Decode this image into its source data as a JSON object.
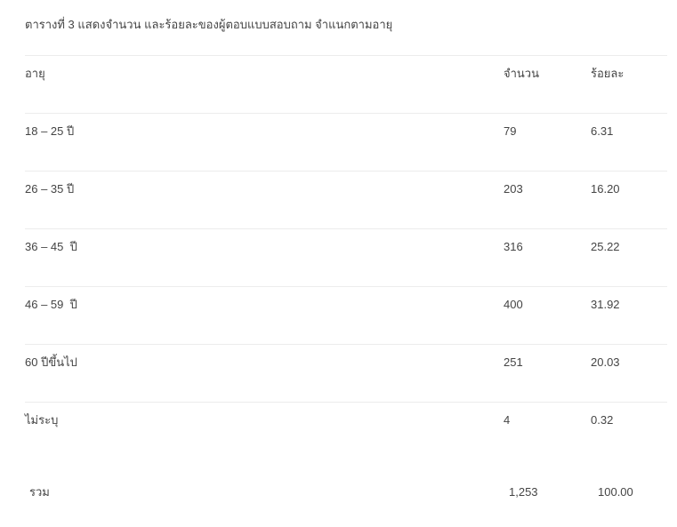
{
  "title": "ตารางที่ 3 แสดงจำนวน และร้อยละของผู้ตอบแบบสอบถาม จำแนกตามอายุ",
  "line_color": "#ececec",
  "headers": [
    "อายุ",
    "จำนวน",
    "ร้อยละ"
  ],
  "rows": [
    [
      "18 – 25 ปี",
      "79",
      "6.31"
    ],
    [
      "26 – 35 ปี",
      "203",
      "16.20"
    ],
    [
      "36 – 45  ปี",
      "316",
      "25.22"
    ],
    [
      "46 – 59  ปี",
      "400",
      "31.92"
    ],
    [
      "60 ปีขึ้นไป",
      "251",
      "20.03"
    ],
    [
      "ไม่ระบุ",
      "4",
      "0.32"
    ]
  ],
  "total": [
    "รวม",
    "1,253",
    "100.00"
  ]
}
